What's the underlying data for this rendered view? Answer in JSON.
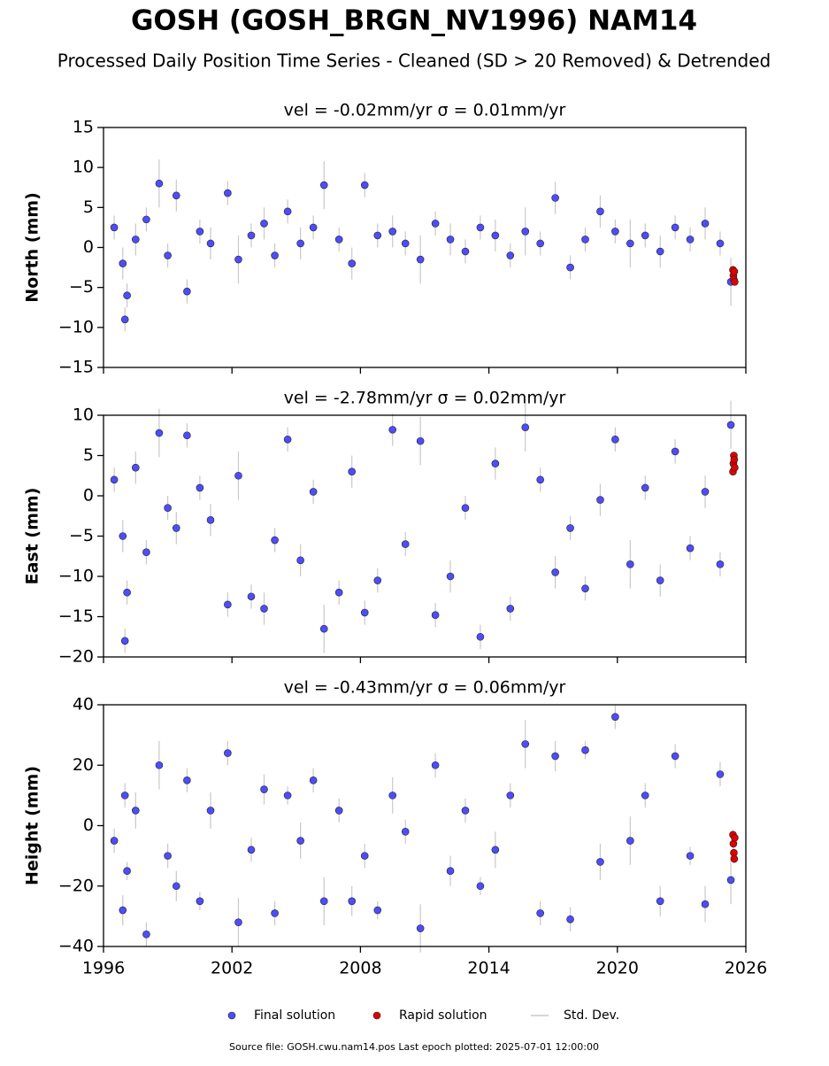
{
  "title": "GOSH (GOSH_BRGN_NV1996) NAM14",
  "subtitle": "Processed Daily Position Time Series - Cleaned (SD > 20 Removed) & Detrended",
  "legend": [
    {
      "name": "Final solution",
      "color": "#4d4dff"
    },
    {
      "name": "Rapid solution",
      "color": "#e00000"
    },
    {
      "name": "Std. Dev.",
      "color": "#c8c8c8"
    }
  ],
  "footer": "Source file: GOSH.cwu.nam14.pos  Last epoch plotted: 2025-07-01 12:00:00",
  "chart_data": [
    {
      "type": "scatter",
      "title": "vel = -0.02mm/yr   σ = 0.01mm/yr",
      "ylabel": "North (mm)",
      "xlim": [
        1996,
        2026
      ],
      "xticks": [
        1996,
        2002,
        2008,
        2014,
        2020,
        2026
      ],
      "ylim": [
        -15,
        15
      ],
      "yticks": [
        {
          "value": -15,
          "label": "−15"
        },
        {
          "value": -10,
          "label": "−10"
        },
        {
          "value": -5,
          "label": "−5"
        },
        0,
        5,
        10,
        15
      ],
      "series": [
        {
          "x": [
            1996.5,
            1996.9,
            1997.0,
            1997.1,
            1997.5,
            1998.0,
            1998.6,
            1999.0,
            1999.4,
            1999.9,
            2000.5,
            2001.0,
            2001.8,
            2002.3,
            2002.9,
            2003.5,
            2004.0,
            2004.6,
            2005.2,
            2005.8,
            2006.3,
            2007.0,
            2007.6,
            2008.2,
            2008.8,
            2009.5,
            2010.1,
            2010.8,
            2011.5,
            2012.2,
            2012.9,
            2013.6,
            2014.3,
            2015.0,
            2015.7,
            2016.4,
            2017.1,
            2017.8,
            2018.5,
            2019.2,
            2019.9,
            2020.6,
            2021.3,
            2022.0,
            2022.7,
            2023.4,
            2024.1,
            2024.8,
            2025.3
          ],
          "values": [
            2.5,
            -2.0,
            -9.0,
            -6.0,
            1.0,
            3.5,
            8.0,
            -1.0,
            6.5,
            -5.5,
            2.0,
            0.5,
            6.8,
            -1.5,
            1.5,
            3.0,
            -1.0,
            4.5,
            0.5,
            2.5,
            7.8,
            1.0,
            -2.0,
            7.8,
            1.5,
            2.0,
            0.5,
            -1.5,
            3.0,
            1.0,
            -0.5,
            2.5,
            1.5,
            -1.0,
            2.0,
            0.5,
            6.2,
            -2.5,
            1.0,
            4.5,
            2.0,
            0.5,
            1.5,
            -0.5,
            2.5,
            1.0,
            3.0,
            0.5,
            -4.3
          ],
          "errors": [
            1.5,
            2,
            1.5,
            1.5,
            2,
            1.5,
            3,
            1.5,
            2,
            1.5,
            1.5,
            2,
            1.5,
            3,
            1.5,
            2,
            1.5,
            1.5,
            2,
            1.5,
            3,
            1.5,
            2,
            1.5,
            1.5,
            2,
            1.5,
            3,
            1.5,
            2,
            1.5,
            1.5,
            2,
            1.5,
            3,
            1.5,
            2,
            1.5,
            1.5,
            2,
            1.5,
            3,
            1.5,
            2,
            1.5,
            1.5,
            2,
            1.5,
            3
          ]
        },
        {
          "x": [
            2025.4,
            2025.42,
            2025.44,
            2025.46,
            2025.48
          ],
          "values": [
            -2.8,
            -3.5,
            -4.0,
            -3.0,
            -4.3
          ],
          "errors": [
            0.5,
            0.5,
            0.5,
            0.5,
            0.5
          ]
        }
      ]
    },
    {
      "type": "scatter",
      "title": "vel = -2.78mm/yr   σ = 0.02mm/yr",
      "ylabel": "East (mm)",
      "xlim": [
        1996,
        2026
      ],
      "xticks": [
        1996,
        2002,
        2008,
        2014,
        2020,
        2026
      ],
      "ylim": [
        -20,
        10
      ],
      "yticks": [
        {
          "value": -20,
          "label": "−20"
        },
        {
          "value": -15,
          "label": "−15"
        },
        {
          "value": -10,
          "label": "−10"
        },
        {
          "value": -5,
          "label": "−5"
        },
        0,
        5,
        10
      ],
      "series": [
        {
          "x": [
            1996.5,
            1996.9,
            1997.0,
            1997.1,
            1997.5,
            1998.0,
            1998.6,
            1999.0,
            1999.4,
            1999.9,
            2000.5,
            2001.0,
            2001.8,
            2002.3,
            2002.9,
            2003.5,
            2004.0,
            2004.6,
            2005.2,
            2005.8,
            2006.3,
            2007.0,
            2007.6,
            2008.2,
            2008.8,
            2009.5,
            2010.1,
            2010.8,
            2011.5,
            2012.2,
            2012.9,
            2013.6,
            2014.3,
            2015.0,
            2015.7,
            2016.4,
            2017.1,
            2017.8,
            2018.5,
            2019.2,
            2019.9,
            2020.6,
            2021.3,
            2022.0,
            2022.7,
            2023.4,
            2024.1,
            2024.8,
            2025.3
          ],
          "values": [
            2.0,
            -5.0,
            -18.0,
            -12.0,
            3.5,
            -7.0,
            7.8,
            -1.5,
            -4.0,
            7.5,
            1.0,
            -3.0,
            -13.5,
            2.5,
            -12.5,
            -14.0,
            -5.5,
            7.0,
            -8.0,
            0.5,
            -16.5,
            -12.0,
            3.0,
            -14.5,
            -10.5,
            8.2,
            -6.0,
            6.8,
            -14.8,
            -10.0,
            -1.5,
            -17.5,
            4.0,
            -14.0,
            8.5,
            2.0,
            -9.5,
            -4.0,
            -11.5,
            -0.5,
            7.0,
            -8.5,
            1.0,
            -10.5,
            5.5,
            -6.5,
            0.5,
            -8.5,
            8.8
          ],
          "errors": [
            1.5,
            2,
            1.5,
            1.5,
            2,
            1.5,
            3,
            1.5,
            2,
            1.5,
            1.5,
            2,
            1.5,
            3,
            1.5,
            2,
            1.5,
            1.5,
            2,
            1.5,
            3,
            1.5,
            2,
            1.5,
            1.5,
            2,
            1.5,
            3,
            1.5,
            2,
            1.5,
            1.5,
            2,
            1.5,
            3,
            1.5,
            2,
            1.5,
            1.5,
            2,
            1.5,
            3,
            1.5,
            2,
            1.5,
            1.5,
            2,
            1.5,
            3
          ]
        },
        {
          "x": [
            2025.4,
            2025.42,
            2025.44,
            2025.46,
            2025.48
          ],
          "values": [
            3.0,
            4.0,
            5.0,
            4.5,
            3.5
          ],
          "errors": [
            0.5,
            0.5,
            0.5,
            0.5,
            0.5
          ]
        }
      ]
    },
    {
      "type": "scatter",
      "title": "vel = -0.43mm/yr   σ = 0.06mm/yr",
      "ylabel": "Height (mm)",
      "xlim": [
        1996,
        2026
      ],
      "xticks": [
        1996,
        2002,
        2008,
        2014,
        2020,
        2026
      ],
      "ylim": [
        -40,
        40
      ],
      "yticks": [
        {
          "value": -40,
          "label": "−40"
        },
        {
          "value": -20,
          "label": "−20"
        },
        0,
        20,
        40
      ],
      "series": [
        {
          "x": [
            1996.5,
            1996.9,
            1997.0,
            1997.1,
            1997.5,
            1998.0,
            1998.6,
            1999.0,
            1999.4,
            1999.9,
            2000.5,
            2001.0,
            2001.8,
            2002.3,
            2002.9,
            2003.5,
            2004.0,
            2004.6,
            2005.2,
            2005.8,
            2006.3,
            2007.0,
            2007.6,
            2008.2,
            2008.8,
            2009.5,
            2010.1,
            2010.8,
            2011.5,
            2012.2,
            2012.9,
            2013.6,
            2014.3,
            2015.0,
            2015.7,
            2016.4,
            2017.1,
            2017.8,
            2018.5,
            2019.2,
            2019.9,
            2020.6,
            2021.3,
            2022.0,
            2022.7,
            2023.4,
            2024.1,
            2024.8,
            2025.3
          ],
          "values": [
            -5,
            -28,
            10,
            -15,
            5,
            -36,
            20,
            -10,
            -20,
            15,
            -25,
            5,
            24,
            -32,
            -8,
            12,
            -29,
            10,
            -5,
            15,
            -25,
            5,
            -25,
            -10,
            -28,
            10,
            -2,
            -34,
            20,
            -15,
            5,
            -20,
            -8,
            10,
            27,
            -29,
            23,
            -31,
            25,
            -12,
            36,
            -5,
            10,
            -25,
            23,
            -10,
            -26,
            17,
            -18
          ],
          "errors": [
            4,
            5,
            4,
            3,
            6,
            4,
            8,
            4,
            5,
            4,
            3,
            6,
            4,
            8,
            4,
            5,
            4,
            3,
            6,
            4,
            8,
            4,
            5,
            4,
            3,
            6,
            4,
            8,
            4,
            5,
            4,
            3,
            6,
            4,
            8,
            4,
            5,
            4,
            3,
            6,
            4,
            8,
            4,
            5,
            4,
            3,
            6,
            4,
            8
          ]
        },
        {
          "x": [
            2025.4,
            2025.42,
            2025.44,
            2025.46,
            2025.48
          ],
          "values": [
            -3,
            -6,
            -9,
            -11,
            -4
          ],
          "errors": [
            1.5,
            1.5,
            1.5,
            1.5,
            1.5
          ]
        }
      ]
    }
  ]
}
